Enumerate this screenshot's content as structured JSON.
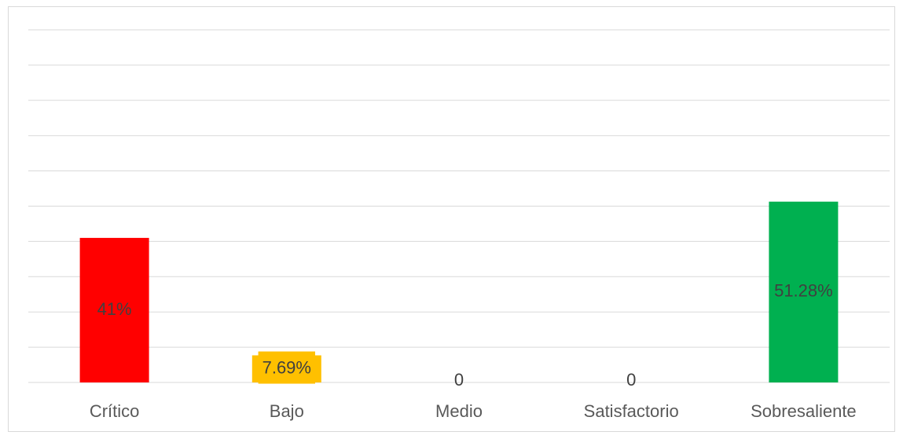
{
  "chart_data": {
    "type": "bar",
    "categories": [
      "Crítico",
      "Bajo",
      "Medio",
      "Satisfactorio",
      "Sobresaliente"
    ],
    "values": [
      41,
      7.69,
      0,
      0,
      51.28
    ],
    "value_labels": [
      "41%",
      "7.69%",
      "0",
      "0",
      "51.28%"
    ],
    "colors": [
      "#ff0000",
      "#ffc000",
      "#4472c4",
      "#4472c4",
      "#00b050"
    ],
    "ylim": [
      0,
      100
    ],
    "yticks": [
      0,
      10,
      20,
      30,
      40,
      50,
      60,
      70,
      80,
      90,
      100
    ],
    "grid": true
  }
}
